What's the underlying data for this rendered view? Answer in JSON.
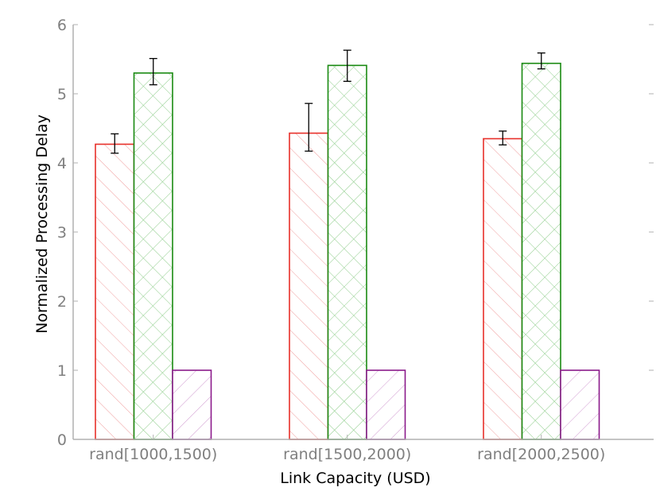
{
  "chart_data": {
    "type": "bar",
    "title": "",
    "xlabel": "Link Capacity (USD)",
    "ylabel": "Normalized Processing Delay",
    "categories": [
      "rand[1000,1500)",
      "rand[1500,2000)",
      "rand[2000,2500)"
    ],
    "ylim": [
      0,
      6
    ],
    "yticks": [
      "0",
      "1",
      "2",
      "3",
      "4",
      "5",
      "6"
    ],
    "grid": false,
    "series": [
      {
        "values": [
          4.27,
          4.43,
          4.35
        ],
        "err_low": [
          4.14,
          4.17,
          4.26
        ],
        "err_high": [
          4.42,
          4.86,
          4.46
        ],
        "color": "#e8302a",
        "hatch": "forward-diagonal"
      },
      {
        "values": [
          5.3,
          5.41,
          5.44
        ],
        "err_low": [
          5.13,
          5.18,
          5.36
        ],
        "err_high": [
          5.51,
          5.63,
          5.59
        ],
        "color": "#1a8a12",
        "hatch": "cross"
      },
      {
        "values": [
          1.0,
          1.0,
          1.0
        ],
        "color": "#8b1a8b",
        "hatch": "back-diagonal"
      }
    ]
  }
}
